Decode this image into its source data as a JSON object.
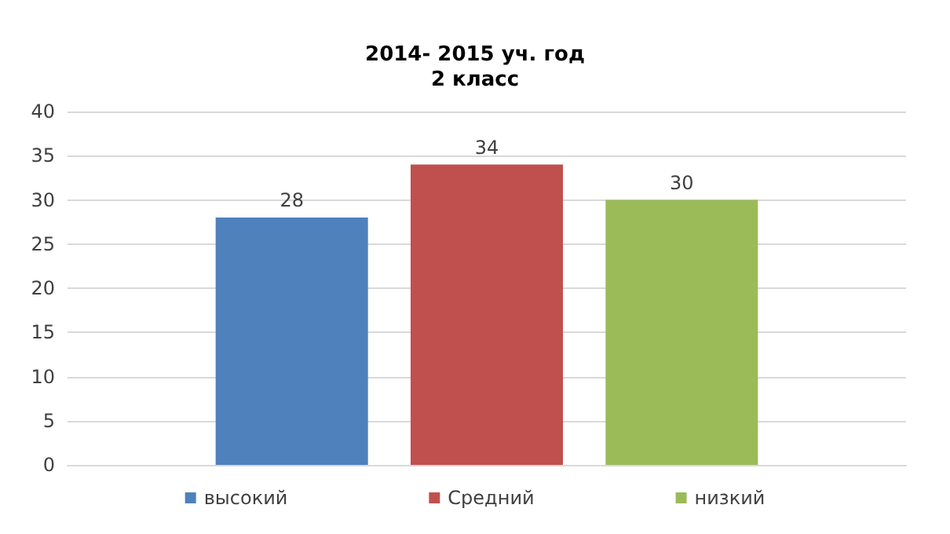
{
  "chart_data": {
    "type": "bar",
    "title": "2014- 2015 уч. год\n2 класс",
    "categories": [
      null
    ],
    "series": [
      {
        "name": "высокий",
        "color": "#4f81bd",
        "values": [
          28
        ]
      },
      {
        "name": "Средний",
        "color": "#c0504d",
        "values": [
          34
        ]
      },
      {
        "name": "низкий",
        "color": "#9bbb59",
        "values": [
          30
        ]
      }
    ],
    "ylim": [
      0,
      40
    ],
    "yticks": [
      0,
      5,
      10,
      15,
      20,
      25,
      30,
      35,
      40
    ],
    "grid": "y",
    "legend": "bottom",
    "data_labels": true
  }
}
